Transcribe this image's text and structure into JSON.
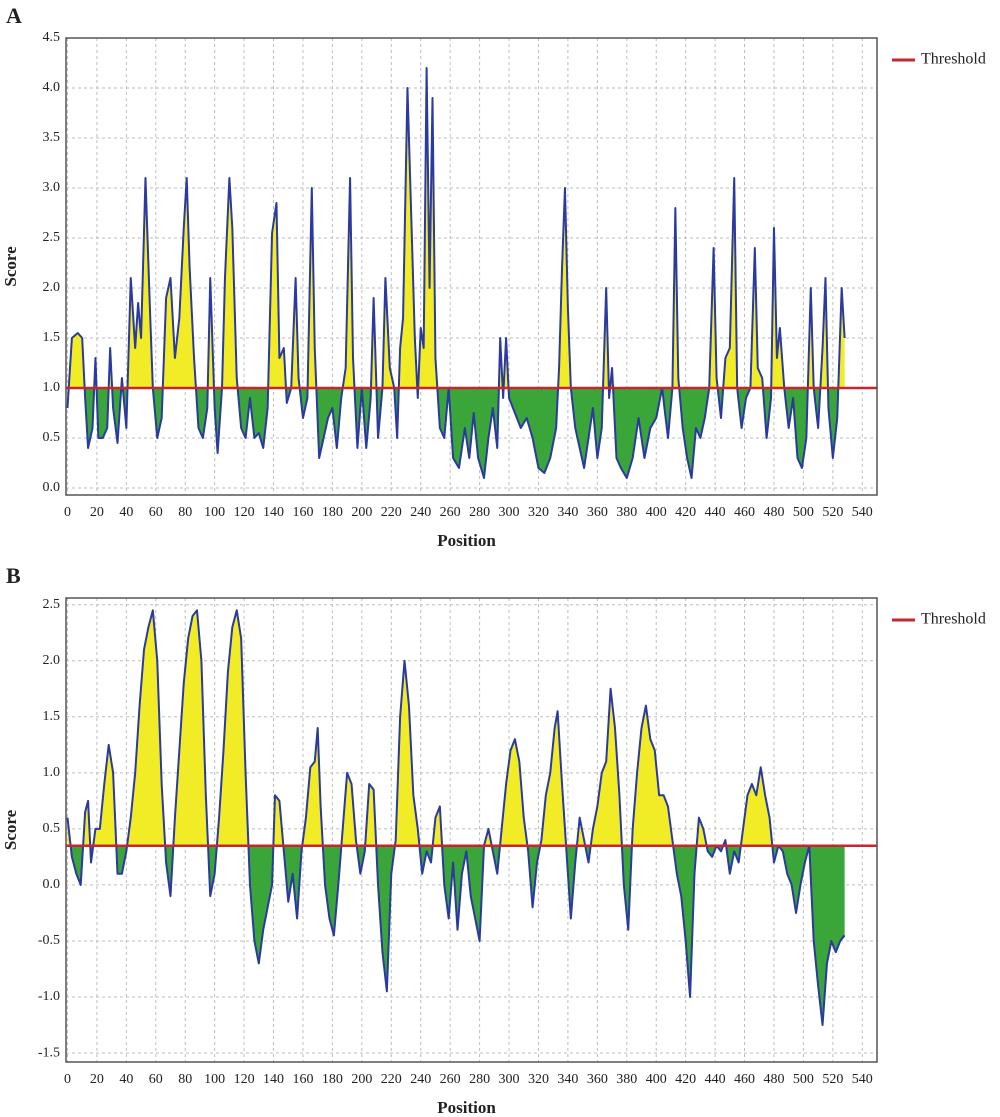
{
  "chart_data": [
    {
      "type": "area",
      "panel_label": "A",
      "x_label": "Position",
      "y_label": "Score",
      "threshold": {
        "name": "Threshold",
        "value": 1.0,
        "color": "#c9252c"
      },
      "line_color": "#2a3a9e",
      "above_color": "#f2ec27",
      "below_color": "#3aa63a",
      "xlim": [
        -1,
        550
      ],
      "ylim": [
        -0.07,
        4.5
      ],
      "xticks": [
        0,
        20,
        40,
        60,
        80,
        100,
        120,
        140,
        160,
        180,
        200,
        220,
        240,
        260,
        280,
        300,
        320,
        340,
        360,
        380,
        400,
        420,
        440,
        460,
        480,
        500,
        520,
        540
      ],
      "yticks": [
        {
          "value": 0,
          "label": "0.0"
        },
        0.5,
        {
          "value": 1,
          "label": "1.0"
        },
        1.5,
        {
          "value": 2,
          "label": "2.0"
        },
        2.5,
        {
          "value": 3,
          "label": "3.0"
        },
        3.5,
        {
          "value": 4,
          "label": "4.0"
        },
        4.5
      ],
      "grid": true,
      "x": [
        0,
        3,
        7,
        10,
        12,
        14,
        17,
        19,
        21,
        24,
        27,
        29,
        31,
        34,
        37,
        40,
        43,
        46,
        48,
        50,
        53,
        56,
        58,
        61,
        64,
        67,
        70,
        73,
        76,
        79,
        81,
        83,
        86,
        89,
        92,
        95,
        97,
        100,
        102,
        105,
        107,
        110,
        112,
        115,
        118,
        121,
        124,
        127,
        130,
        133,
        136,
        139,
        142,
        144,
        147,
        149,
        152,
        155,
        157,
        160,
        163,
        166,
        168,
        171,
        174,
        177,
        180,
        183,
        186,
        189,
        192,
        194,
        197,
        200,
        203,
        206,
        208,
        211,
        214,
        216,
        219,
        222,
        224,
        226,
        228,
        231,
        234,
        236,
        238,
        240,
        242,
        244,
        246,
        248,
        250,
        253,
        256,
        259,
        262,
        266,
        270,
        273,
        276,
        279,
        283,
        286,
        289,
        292,
        294,
        296,
        298,
        300,
        304,
        308,
        312,
        316,
        320,
        324,
        328,
        332,
        334,
        336,
        338,
        340,
        342,
        345,
        348,
        351,
        354,
        357,
        360,
        363,
        366,
        368,
        370,
        373,
        376,
        380,
        384,
        388,
        392,
        396,
        400,
        404,
        408,
        411,
        413,
        415,
        418,
        421,
        424,
        427,
        430,
        433,
        436,
        439,
        441,
        444,
        447,
        450,
        453,
        455,
        458,
        461,
        464,
        467,
        469,
        472,
        475,
        478,
        480,
        482,
        484,
        487,
        490,
        493,
        496,
        499,
        502,
        505,
        507,
        510,
        513,
        515,
        517,
        520,
        523,
        526,
        528
      ],
      "values": [
        0.8,
        1.5,
        1.55,
        1.5,
        0.9,
        0.4,
        0.6,
        1.3,
        0.5,
        0.5,
        0.6,
        1.4,
        0.8,
        0.45,
        1.1,
        0.6,
        2.1,
        1.4,
        1.85,
        1.5,
        3.1,
        1.8,
        1.0,
        0.5,
        0.7,
        1.9,
        2.1,
        1.3,
        1.7,
        2.6,
        3.1,
        2.2,
        1.3,
        0.6,
        0.5,
        0.8,
        2.1,
        0.8,
        0.35,
        1.0,
        2.1,
        3.1,
        2.6,
        1.1,
        0.6,
        0.5,
        0.9,
        0.5,
        0.55,
        0.4,
        0.8,
        2.55,
        2.85,
        1.3,
        1.4,
        0.85,
        1.0,
        2.1,
        1.1,
        0.7,
        0.9,
        3.0,
        1.4,
        0.3,
        0.5,
        0.7,
        0.8,
        0.4,
        0.9,
        1.2,
        3.1,
        1.3,
        0.4,
        1.0,
        0.4,
        0.9,
        1.9,
        0.5,
        1.0,
        2.1,
        1.2,
        1.0,
        0.5,
        1.4,
        1.7,
        4.0,
        2.5,
        1.5,
        0.9,
        1.6,
        1.4,
        4.2,
        2.0,
        3.9,
        1.3,
        0.6,
        0.5,
        1.0,
        0.3,
        0.2,
        0.6,
        0.3,
        0.75,
        0.3,
        0.1,
        0.5,
        0.8,
        0.4,
        1.5,
        0.9,
        1.5,
        0.9,
        0.75,
        0.6,
        0.7,
        0.5,
        0.2,
        0.15,
        0.3,
        0.6,
        1.2,
        2.2,
        3.0,
        1.8,
        1.0,
        0.6,
        0.4,
        0.2,
        0.5,
        0.8,
        0.3,
        0.6,
        2.0,
        0.9,
        1.2,
        0.3,
        0.2,
        0.1,
        0.3,
        0.7,
        0.3,
        0.6,
        0.7,
        1.0,
        0.5,
        1.0,
        2.8,
        1.1,
        0.6,
        0.3,
        0.1,
        0.6,
        0.5,
        0.7,
        1.0,
        2.4,
        1.1,
        0.7,
        1.3,
        1.4,
        3.1,
        1.0,
        0.6,
        0.9,
        1.0,
        2.4,
        1.2,
        1.1,
        0.5,
        0.9,
        2.6,
        1.3,
        1.6,
        1.0,
        0.6,
        0.9,
        0.3,
        0.2,
        0.5,
        2.0,
        1.0,
        0.6,
        1.4,
        2.1,
        0.8,
        0.3,
        0.7,
        2.0,
        1.5
      ]
    },
    {
      "type": "area",
      "panel_label": "B",
      "x_label": "Position",
      "y_label": "Score",
      "threshold": {
        "name": "Threshold",
        "value": 0.35,
        "color": "#c9252c"
      },
      "line_color": "#2a3a9e",
      "above_color": "#f2ec27",
      "below_color": "#3aa63a",
      "xlim": [
        -1,
        550
      ],
      "ylim": [
        -1.58,
        2.56
      ],
      "xticks": [
        0,
        20,
        40,
        60,
        80,
        100,
        120,
        140,
        160,
        180,
        200,
        220,
        240,
        260,
        280,
        300,
        320,
        340,
        360,
        380,
        400,
        420,
        440,
        460,
        480,
        500,
        520,
        540
      ],
      "yticks": [
        -1.5,
        {
          "value": -1,
          "label": "-1.0"
        },
        -0.5,
        {
          "value": 0,
          "label": "0.0"
        },
        0.5,
        {
          "value": 1,
          "label": "1.0"
        },
        1.5,
        {
          "value": 2,
          "label": "2.0"
        },
        2.5
      ],
      "grid": true,
      "x": [
        0,
        3,
        6,
        9,
        12,
        14,
        16,
        19,
        22,
        25,
        28,
        31,
        34,
        37,
        40,
        43,
        46,
        49,
        52,
        55,
        58,
        61,
        64,
        67,
        70,
        73,
        76,
        79,
        82,
        85,
        88,
        91,
        94,
        97,
        100,
        103,
        106,
        109,
        112,
        115,
        118,
        121,
        124,
        127,
        130,
        133,
        136,
        139,
        141,
        144,
        147,
        150,
        153,
        156,
        159,
        162,
        165,
        168,
        170,
        172,
        175,
        178,
        181,
        184,
        187,
        190,
        193,
        196,
        199,
        202,
        205,
        208,
        211,
        214,
        217,
        220,
        223,
        226,
        229,
        232,
        235,
        238,
        241,
        244,
        247,
        250,
        253,
        256,
        259,
        262,
        265,
        268,
        271,
        274,
        277,
        280,
        283,
        286,
        289,
        292,
        295,
        298,
        301,
        304,
        307,
        310,
        313,
        316,
        319,
        322,
        325,
        328,
        331,
        333,
        336,
        339,
        342,
        345,
        348,
        351,
        354,
        357,
        360,
        363,
        366,
        369,
        372,
        375,
        378,
        381,
        384,
        387,
        390,
        393,
        396,
        399,
        402,
        405,
        408,
        411,
        414,
        417,
        420,
        423,
        426,
        429,
        432,
        435,
        438,
        441,
        444,
        447,
        450,
        453,
        456,
        459,
        462,
        465,
        468,
        471,
        474,
        477,
        480,
        483,
        486,
        489,
        492,
        495,
        498,
        501,
        504,
        507,
        510,
        513,
        516,
        519,
        522,
        525,
        528
      ],
      "values": [
        0.6,
        0.25,
        0.1,
        0.0,
        0.65,
        0.75,
        0.2,
        0.5,
        0.5,
        0.9,
        1.25,
        1.0,
        0.1,
        0.1,
        0.3,
        0.6,
        1.0,
        1.6,
        2.1,
        2.3,
        2.45,
        2.0,
        0.9,
        0.2,
        -0.1,
        0.6,
        1.2,
        1.8,
        2.2,
        2.4,
        2.45,
        2.0,
        0.8,
        -0.1,
        0.1,
        0.6,
        1.2,
        1.9,
        2.3,
        2.45,
        2.2,
        1.0,
        0.0,
        -0.5,
        -0.7,
        -0.4,
        -0.2,
        0.0,
        0.8,
        0.75,
        0.3,
        -0.15,
        0.1,
        -0.3,
        0.3,
        0.6,
        1.05,
        1.1,
        1.4,
        0.7,
        0.0,
        -0.3,
        -0.45,
        0.0,
        0.5,
        1.0,
        0.9,
        0.4,
        0.1,
        0.3,
        0.9,
        0.85,
        0.0,
        -0.6,
        -0.95,
        0.1,
        0.4,
        1.5,
        2.0,
        1.6,
        0.8,
        0.5,
        0.1,
        0.3,
        0.2,
        0.6,
        0.7,
        0.0,
        -0.3,
        0.2,
        -0.4,
        0.1,
        0.3,
        -0.1,
        -0.3,
        -0.5,
        0.35,
        0.5,
        0.3,
        0.1,
        0.5,
        0.9,
        1.2,
        1.3,
        1.1,
        0.6,
        0.3,
        -0.2,
        0.2,
        0.4,
        0.8,
        1.0,
        1.4,
        1.55,
        0.9,
        0.3,
        -0.3,
        0.2,
        0.6,
        0.4,
        0.2,
        0.5,
        0.7,
        1.0,
        1.1,
        1.75,
        1.4,
        0.8,
        0.0,
        -0.4,
        0.5,
        1.0,
        1.4,
        1.6,
        1.3,
        1.2,
        0.8,
        0.8,
        0.7,
        0.4,
        0.1,
        -0.1,
        -0.5,
        -1.0,
        0.1,
        0.6,
        0.5,
        0.3,
        0.25,
        0.35,
        0.3,
        0.4,
        0.1,
        0.3,
        0.2,
        0.5,
        0.8,
        0.9,
        0.8,
        1.05,
        0.8,
        0.6,
        0.2,
        0.35,
        0.3,
        0.1,
        0.0,
        -0.25,
        0.0,
        0.2,
        0.35,
        -0.5,
        -0.9,
        -1.25,
        -0.7,
        -0.5,
        -0.6,
        -0.5,
        -0.45
      ]
    }
  ]
}
